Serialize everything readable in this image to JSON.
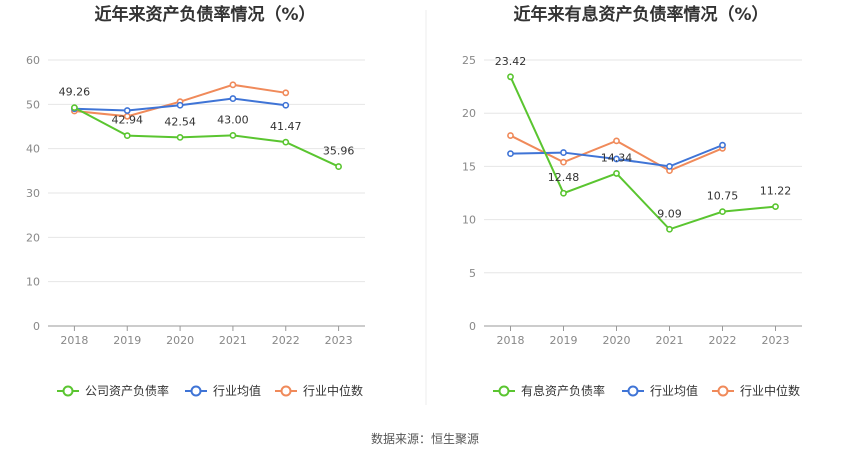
{
  "chart_data": [
    {
      "type": "line",
      "title": "近年来资产负债率情况（%）",
      "categories": [
        "2018",
        "2019",
        "2020",
        "2021",
        "2022",
        "2023"
      ],
      "ylim": [
        0,
        60
      ],
      "yticks": [
        0,
        10,
        20,
        30,
        40,
        50,
        60
      ],
      "series": [
        {
          "name": "公司资产负债率",
          "color": "#5ac530",
          "values": [
            49.26,
            42.94,
            42.54,
            43.0,
            41.47,
            35.96
          ],
          "labels": [
            "49.26",
            "42.94",
            "42.54",
            "43.00",
            "41.47",
            "35.96"
          ]
        },
        {
          "name": "行业均值",
          "color": "#3f74d6",
          "values": [
            49.0,
            48.6,
            49.8,
            51.3,
            49.8,
            null
          ]
        },
        {
          "name": "行业中位数",
          "color": "#f08a5a",
          "values": [
            48.5,
            47.3,
            50.6,
            54.4,
            52.6,
            null
          ]
        }
      ]
    },
    {
      "type": "line",
      "title": "近年来有息资产负债率情况（%）",
      "categories": [
        "2018",
        "2019",
        "2020",
        "2021",
        "2022",
        "2023"
      ],
      "ylim": [
        0,
        25
      ],
      "yticks": [
        0,
        5,
        10,
        15,
        20,
        25
      ],
      "series": [
        {
          "name": "有息资产负债率",
          "color": "#5ac530",
          "values": [
            23.42,
            12.48,
            14.34,
            9.09,
            10.75,
            11.22
          ],
          "labels": [
            "23.42",
            "12.48",
            "14.34",
            "9.09",
            "10.75",
            "11.22"
          ]
        },
        {
          "name": "行业均值",
          "color": "#3f74d6",
          "values": [
            16.2,
            16.3,
            15.7,
            15.0,
            17.0,
            null
          ]
        },
        {
          "name": "行业中位数",
          "color": "#f08a5a",
          "values": [
            17.9,
            15.4,
            17.4,
            14.6,
            16.7,
            null
          ]
        }
      ]
    }
  ],
  "source": "数据来源：恒生聚源"
}
